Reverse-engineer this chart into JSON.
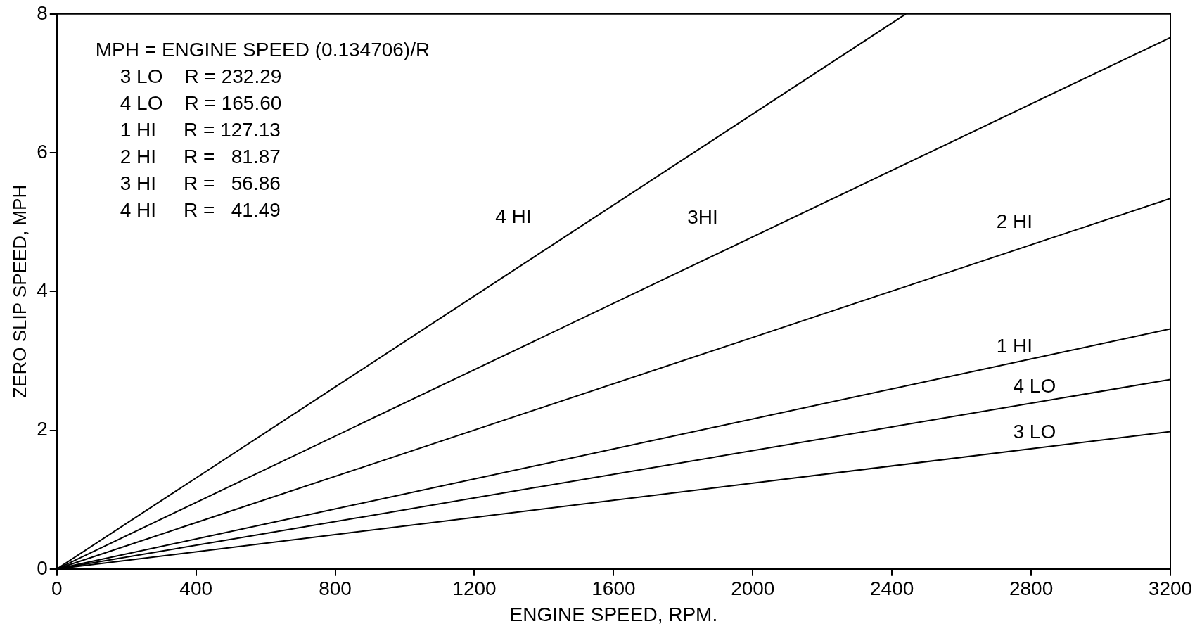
{
  "chart_data": {
    "type": "line",
    "xlabel": "ENGINE SPEED, RPM.",
    "ylabel": "ZERO SLIP SPEED, MPH",
    "xlim": [
      0,
      3200
    ],
    "ylim": [
      0,
      8
    ],
    "xticks": [
      0,
      400,
      800,
      1200,
      1600,
      2000,
      2400,
      2800,
      3200
    ],
    "yticks": [
      0,
      2,
      4,
      6,
      8
    ],
    "grid": false,
    "legend": false,
    "marker": "none",
    "line_style": "solid",
    "series": [
      {
        "name": "3 LO",
        "color": "#000000",
        "x": [
          0,
          3200
        ],
        "values": [
          0,
          1.98
        ]
      },
      {
        "name": "4 LO",
        "color": "#000000",
        "x": [
          0,
          3200
        ],
        "values": [
          0,
          2.73
        ]
      },
      {
        "name": "1 HI",
        "color": "#000000",
        "x": [
          0,
          3200
        ],
        "values": [
          0,
          3.46
        ]
      },
      {
        "name": "2 HI",
        "color": "#000000",
        "x": [
          0,
          3200
        ],
        "values": [
          0,
          5.34
        ]
      },
      {
        "name": "3HI",
        "color": "#000000",
        "x": [
          0,
          3200
        ],
        "values": [
          0,
          7.66
        ]
      },
      {
        "name": "4 HI",
        "color": "#000000",
        "x": [
          0,
          2440
        ],
        "values": [
          0,
          8
        ]
      }
    ],
    "annotations": [
      "MPH = ENGINE SPEED (0.134706)/R",
      "3 LO    R = 232.29",
      "4 LO    R = 165.60",
      "1 HI     R = 127.13",
      "2 HI     R =   81.87",
      "3 HI     R =   56.86",
      "4 HI     R =   41.49"
    ]
  }
}
